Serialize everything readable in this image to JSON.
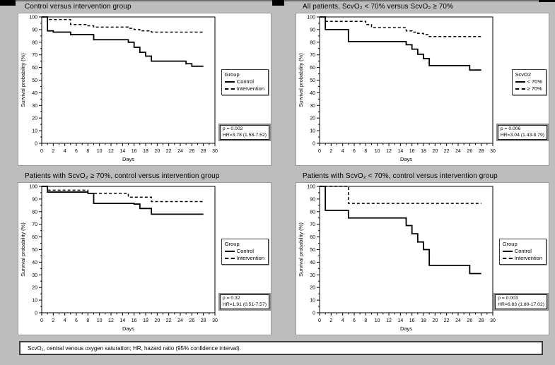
{
  "page": {
    "background": "#bdbdbd",
    "footer": "ScvO₂, central venous oxygen saturation; HR, hazard ratio (95% confidence interval)."
  },
  "chart_data": [
    {
      "type": "line",
      "subtype": "kaplan-meier-step",
      "title": "Control versus intervention group",
      "xlabel": "Days",
      "ylabel": "Survival probability (%)",
      "axes": {
        "x": {
          "min": 0,
          "max": 30,
          "label_step": 2,
          "minor_step": 1
        },
        "y": {
          "min": 0,
          "max": 100,
          "label_step": 10,
          "minor_step": 5
        }
      },
      "legend": {
        "title": "Group",
        "entries": [
          {
            "label": "Control",
            "style": "solid"
          },
          {
            "label": "Intervention",
            "style": "dashed"
          }
        ]
      },
      "stats": {
        "p": "p = 0.002",
        "hr": "HR=3.78 (1.58-7.52)"
      },
      "series": [
        {
          "name": "Control",
          "style": "solid",
          "points": [
            [
              0,
              100
            ],
            [
              1,
              89
            ],
            [
              2,
              88
            ],
            [
              5,
              86
            ],
            [
              9,
              82
            ],
            [
              15,
              80
            ],
            [
              16,
              76
            ],
            [
              17,
              72
            ],
            [
              18,
              69
            ],
            [
              19,
              65
            ],
            [
              25,
              63
            ],
            [
              26,
              61
            ],
            [
              28,
              61
            ]
          ]
        },
        {
          "name": "Intervention",
          "style": "dashed",
          "points": [
            [
              0,
              100
            ],
            [
              1,
              98
            ],
            [
              5,
              94
            ],
            [
              8,
              93
            ],
            [
              9,
              92
            ],
            [
              15,
              91
            ],
            [
              16,
              90
            ],
            [
              17,
              89
            ],
            [
              19,
              88
            ],
            [
              28,
              88
            ]
          ]
        }
      ]
    },
    {
      "type": "line",
      "subtype": "kaplan-meier-step",
      "title": "All patients, ScvO₂ < 70% versus ScvO₂ ≥ 70%",
      "xlabel": "Days",
      "ylabel": "Survival probability (%)",
      "axes": {
        "x": {
          "min": 0,
          "max": 30,
          "label_step": 2,
          "minor_step": 1
        },
        "y": {
          "min": 0,
          "max": 100,
          "label_step": 10,
          "minor_step": 5
        }
      },
      "legend": {
        "title": "ScvO2",
        "entries": [
          {
            "label": "< 70%",
            "style": "solid"
          },
          {
            "label": "≥ 70%",
            "style": "dashed"
          }
        ]
      },
      "stats": {
        "p": "p = 0.006",
        "hr": "HR=3.04 (1.43-8.79)"
      },
      "series": [
        {
          "name": "ScvO2 < 70%",
          "style": "solid",
          "points": [
            [
              0,
              100
            ],
            [
              1,
              90
            ],
            [
              5,
              80.5
            ],
            [
              15,
              78
            ],
            [
              16,
              74.5
            ],
            [
              17,
              70.5
            ],
            [
              18,
              67
            ],
            [
              19,
              61.5
            ],
            [
              26,
              58
            ],
            [
              28,
              58
            ]
          ]
        },
        {
          "name": "ScvO2 >= 70%",
          "style": "dashed",
          "points": [
            [
              0,
              100
            ],
            [
              1,
              96.5
            ],
            [
              8,
              94
            ],
            [
              9,
              91.5
            ],
            [
              15,
              89
            ],
            [
              16,
              88
            ],
            [
              17,
              87
            ],
            [
              18,
              86
            ],
            [
              19,
              84.5
            ],
            [
              28,
              84.5
            ]
          ]
        }
      ]
    },
    {
      "type": "line",
      "subtype": "kaplan-meier-step",
      "title": "Patients with ScvO₂ ≥ 70%, control versus intervention group",
      "xlabel": "Days",
      "ylabel": "Survival probability (%)",
      "axes": {
        "x": {
          "min": 0,
          "max": 30,
          "label_step": 2,
          "minor_step": 1
        },
        "y": {
          "min": 0,
          "max": 100,
          "label_step": 10,
          "minor_step": 5
        }
      },
      "legend": {
        "title": "Group",
        "entries": [
          {
            "label": "Control",
            "style": "solid"
          },
          {
            "label": "Intervention",
            "style": "dashed"
          }
        ]
      },
      "stats": {
        "p": "p = 0.32",
        "hr": "HR=1.91 (0.51-7.57)"
      },
      "series": [
        {
          "name": "Control",
          "style": "solid",
          "points": [
            [
              0,
              100
            ],
            [
              1,
              95.5
            ],
            [
              8,
              94.5
            ],
            [
              9,
              86.5
            ],
            [
              16,
              86
            ],
            [
              17,
              82.5
            ],
            [
              19,
              78
            ],
            [
              28,
              78
            ]
          ]
        },
        {
          "name": "Intervention",
          "style": "dashed",
          "points": [
            [
              0,
              100
            ],
            [
              1,
              97
            ],
            [
              8,
              94.5
            ],
            [
              15,
              91.5
            ],
            [
              19,
              88
            ],
            [
              28,
              88
            ]
          ]
        }
      ]
    },
    {
      "type": "line",
      "subtype": "kaplan-meier-step",
      "title": "Patients with ScvO₂ < 70%, control versus intervention group",
      "xlabel": "Days",
      "ylabel": "Survival probability (%)",
      "axes": {
        "x": {
          "min": 0,
          "max": 30,
          "label_step": 2,
          "minor_step": 1
        },
        "y": {
          "min": 0,
          "max": 100,
          "label_step": 10,
          "minor_step": 5
        }
      },
      "legend": {
        "title": "Group",
        "entries": [
          {
            "label": "Control",
            "style": "solid"
          },
          {
            "label": "Intervention",
            "style": "dashed"
          }
        ]
      },
      "stats": {
        "p": "p = 0.003",
        "hr": "HR=6.83 (1.80-17.02)"
      },
      "series": [
        {
          "name": "Control",
          "style": "solid",
          "points": [
            [
              0,
              100
            ],
            [
              1,
              81
            ],
            [
              5,
              75
            ],
            [
              15,
              69
            ],
            [
              16,
              62.5
            ],
            [
              17,
              56
            ],
            [
              18,
              50
            ],
            [
              19,
              37.5
            ],
            [
              26,
              31
            ],
            [
              28,
              31
            ]
          ]
        },
        {
          "name": "Intervention",
          "style": "dashed",
          "points": [
            [
              0,
              100
            ],
            [
              5,
              86.5
            ],
            [
              28,
              86.5
            ]
          ]
        }
      ]
    }
  ]
}
